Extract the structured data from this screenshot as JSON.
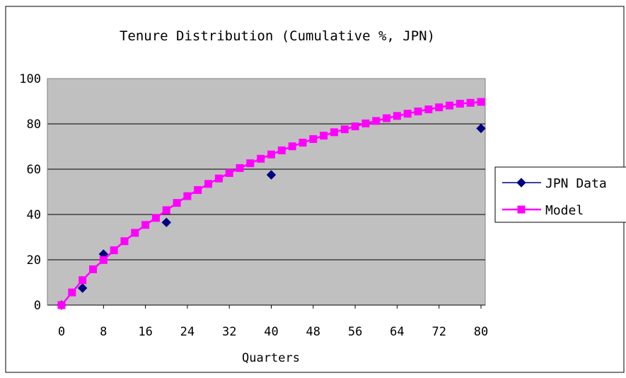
{
  "chart_data": {
    "type": "line",
    "title": "Tenure Distribution (Cumulative %, JPN)",
    "xlabel": "Quarters",
    "ylabel": "",
    "xlim": [
      0,
      80
    ],
    "ylim": [
      0,
      100
    ],
    "x_ticks": [
      "0",
      "8",
      "16",
      "24",
      "32",
      "40",
      "48",
      "56",
      "64",
      "72",
      "80"
    ],
    "y_ticks": [
      "0",
      "20",
      "40",
      "60",
      "80",
      "100"
    ],
    "grid": "horizontal",
    "plot_background": "#C0C0C0",
    "legend_position": "right",
    "series": [
      {
        "name": "JPN Data",
        "style": "markers",
        "marker": "diamond",
        "color": "#000080",
        "points": [
          [
            0,
            0
          ],
          [
            4,
            7.5
          ],
          [
            8,
            22.5
          ],
          [
            20,
            36.5
          ],
          [
            40,
            57.5
          ],
          [
            80,
            78
          ]
        ]
      },
      {
        "name": "Model",
        "style": "line-markers",
        "marker": "square",
        "color": "#FF00FF",
        "points": [
          [
            0,
            0
          ],
          [
            2,
            5.6
          ],
          [
            4,
            11
          ],
          [
            6,
            15.8
          ],
          [
            8,
            19.9
          ],
          [
            10,
            24.2
          ],
          [
            12,
            28.2
          ],
          [
            14,
            31.9
          ],
          [
            16,
            35.4
          ],
          [
            18,
            38.5
          ],
          [
            20,
            41.9
          ],
          [
            22,
            45.1
          ],
          [
            24,
            48.1
          ],
          [
            26,
            50.8
          ],
          [
            28,
            53.5
          ],
          [
            30,
            55.9
          ],
          [
            32,
            58.3
          ],
          [
            34,
            60.5
          ],
          [
            36,
            62.6
          ],
          [
            38,
            64.6
          ],
          [
            40,
            66.5
          ],
          [
            42,
            68.3
          ],
          [
            44,
            70.1
          ],
          [
            46,
            71.7
          ],
          [
            48,
            73.3
          ],
          [
            50,
            74.8
          ],
          [
            52,
            76.3
          ],
          [
            54,
            77.6
          ],
          [
            56,
            78.9
          ],
          [
            58,
            80.2
          ],
          [
            60,
            81.3
          ],
          [
            62,
            82.5
          ],
          [
            64,
            83.5
          ],
          [
            66,
            84.5
          ],
          [
            68,
            85.5
          ],
          [
            70,
            86.4
          ],
          [
            72,
            87.3
          ],
          [
            74,
            88.1
          ],
          [
            76,
            88.9
          ],
          [
            78,
            89.3
          ],
          [
            80,
            89.7
          ]
        ]
      }
    ]
  }
}
